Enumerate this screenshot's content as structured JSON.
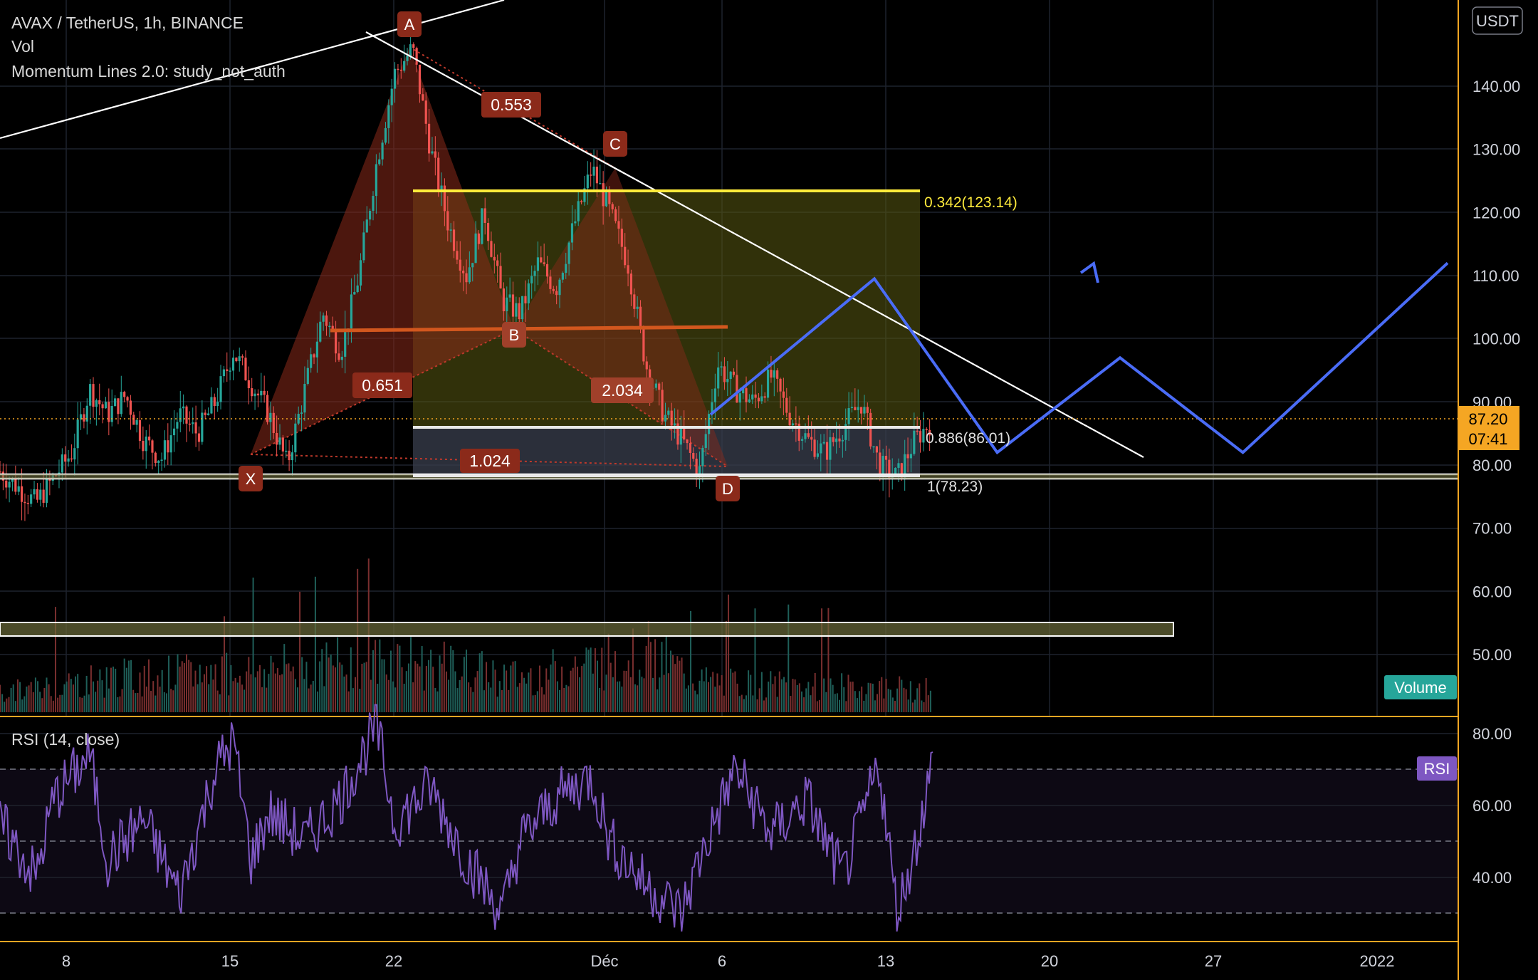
{
  "header": {
    "symbol_line": "AVAX / TetherUS, 1h, BINANCE",
    "indicator_vol": "Vol",
    "indicator_momentum": "Momentum Lines 2.0: study_not_auth"
  },
  "price_axis": {
    "currency_badge": "USDT",
    "current_price": "87.20",
    "countdown": "07:41"
  },
  "volume_badge": "Volume",
  "rsi_pane": {
    "title": "RSI (14, close)",
    "badge": "RSI",
    "ticks": [
      "80.00",
      "60.00",
      "40.00"
    ]
  },
  "colors": {
    "background": "#000000",
    "up": "#26a69a",
    "down": "#ef5350",
    "pattern_fill": "#8b2a1a",
    "pattern_marker": "#8b2a1a",
    "fib_yellow": "#ffeb3b",
    "projection": "#4a6cf7",
    "rsi_line": "#7e57c2",
    "price_label": "#f5a623",
    "volume_badge": "#26a69a",
    "rsi_badge": "#7e57c2"
  },
  "chart_data": {
    "type": "candlestick",
    "x_ticks": [
      "8",
      "15",
      "22",
      "Déc",
      "6",
      "13",
      "20",
      "27",
      "2022"
    ],
    "y_ticks": [
      "140.00",
      "130.00",
      "120.00",
      "110.00",
      "100.00",
      "90.00",
      "80.00",
      "70.00",
      "60.00",
      "50.00"
    ],
    "ylim": [
      43,
      150
    ],
    "current_price": 87.2,
    "harmonic_pattern": {
      "points": [
        {
          "label": "X",
          "price": 81.0
        },
        {
          "label": "A",
          "price": 146.0
        },
        {
          "label": "B",
          "price": 103.0
        },
        {
          "label": "C",
          "price": 127.0
        },
        {
          "label": "D",
          "price": 79.0
        }
      ],
      "ratios": [
        "0.553",
        "0.651",
        "2.034",
        "1.024"
      ]
    },
    "fib_levels": [
      {
        "label": "0.342(123.14)",
        "price": 123.14
      },
      {
        "label": "0.886(86.01)",
        "price": 86.01
      },
      {
        "label": "1(78.23)",
        "price": 78.23
      }
    ],
    "price_path": [
      [
        0,
        79
      ],
      [
        2,
        74
      ],
      [
        4,
        82
      ],
      [
        5,
        92
      ],
      [
        6,
        88
      ],
      [
        7,
        91
      ],
      [
        8,
        84
      ],
      [
        9,
        81
      ],
      [
        10,
        88
      ],
      [
        11,
        85
      ],
      [
        12,
        90
      ],
      [
        13,
        98
      ],
      [
        14,
        93
      ],
      [
        15,
        88
      ],
      [
        16,
        80
      ],
      [
        17,
        92
      ],
      [
        18,
        104
      ],
      [
        19,
        98
      ],
      [
        20,
        110
      ],
      [
        21,
        128
      ],
      [
        22,
        142
      ],
      [
        23,
        146
      ],
      [
        24,
        130
      ],
      [
        25,
        118
      ],
      [
        26,
        110
      ],
      [
        27,
        120
      ],
      [
        28,
        106
      ],
      [
        29,
        104
      ],
      [
        30,
        112
      ],
      [
        31,
        108
      ],
      [
        32,
        118
      ],
      [
        33,
        127
      ],
      [
        34,
        120
      ],
      [
        35,
        112
      ],
      [
        36,
        96
      ],
      [
        37,
        88
      ],
      [
        38,
        84
      ],
      [
        39,
        79
      ],
      [
        40,
        96
      ],
      [
        41,
        92
      ],
      [
        42,
        90
      ],
      [
        43,
        94
      ],
      [
        44,
        88
      ],
      [
        45,
        84
      ],
      [
        46,
        82
      ],
      [
        47,
        86
      ],
      [
        48,
        90
      ],
      [
        49,
        80
      ],
      [
        50,
        78
      ],
      [
        51,
        84
      ],
      [
        52,
        87.2
      ]
    ],
    "volume_path": [
      [
        0,
        5
      ],
      [
        6,
        9
      ],
      [
        14,
        11
      ],
      [
        22,
        14
      ],
      [
        29,
        9
      ],
      [
        36,
        16
      ],
      [
        39,
        8
      ],
      [
        44,
        7
      ],
      [
        52,
        6
      ]
    ],
    "rsi_path": [
      [
        0,
        55
      ],
      [
        2,
        40
      ],
      [
        3,
        62
      ],
      [
        5,
        74
      ],
      [
        6,
        45
      ],
      [
        8,
        56
      ],
      [
        10,
        35
      ],
      [
        12,
        70
      ],
      [
        13,
        78
      ],
      [
        14,
        45
      ],
      [
        15,
        58
      ],
      [
        17,
        50
      ],
      [
        19,
        62
      ],
      [
        21,
        82
      ],
      [
        22,
        55
      ],
      [
        24,
        65
      ],
      [
        26,
        45
      ],
      [
        28,
        30
      ],
      [
        29,
        50
      ],
      [
        31,
        62
      ],
      [
        33,
        68
      ],
      [
        34,
        50
      ],
      [
        36,
        38
      ],
      [
        38,
        30
      ],
      [
        39,
        45
      ],
      [
        41,
        70
      ],
      [
        43,
        52
      ],
      [
        45,
        62
      ],
      [
        46,
        50
      ],
      [
        47,
        40
      ],
      [
        48,
        55
      ],
      [
        49,
        72
      ],
      [
        50,
        30
      ],
      [
        51,
        48
      ],
      [
        52,
        72
      ]
    ],
    "rsi_ylim": [
      25,
      88
    ],
    "projection_path": [
      [
        38,
        88
      ],
      [
        42,
        109.5
      ],
      [
        45,
        82
      ],
      [
        48,
        97
      ],
      [
        51,
        82
      ],
      [
        56,
        112
      ]
    ]
  }
}
